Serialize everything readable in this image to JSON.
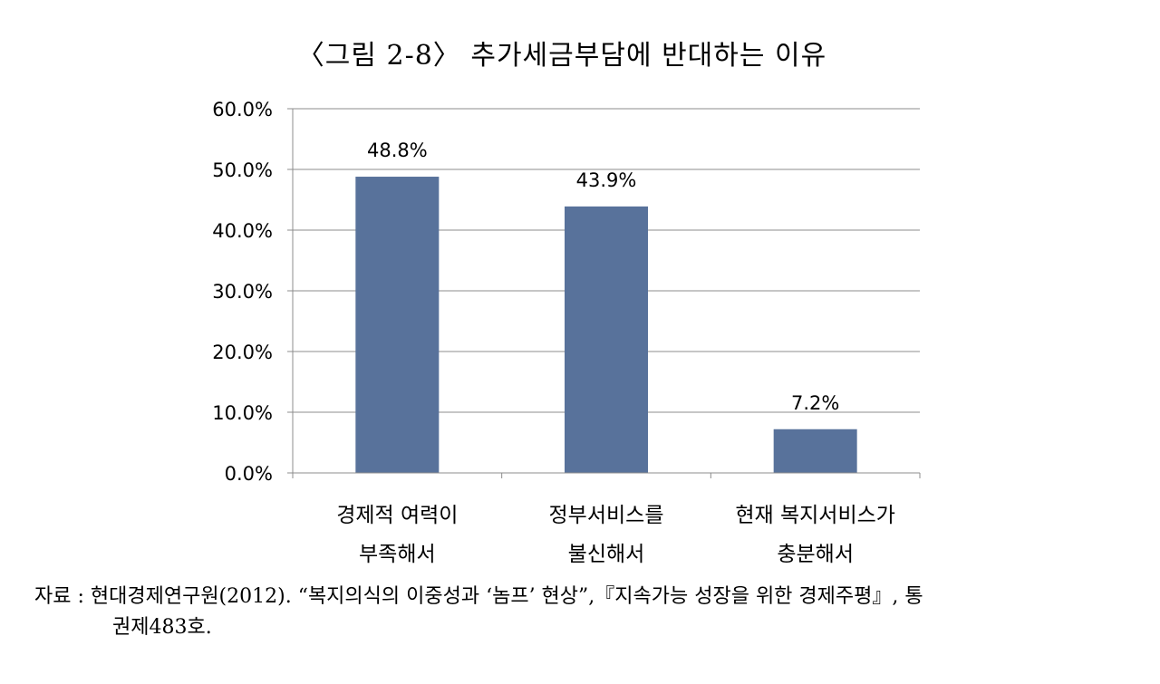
{
  "figure": {
    "title": "〈그림 2-8〉 추가세금부담에 반대하는 이유"
  },
  "chart_data": {
    "type": "bar",
    "categories": [
      [
        "경제적 여력이",
        "부족해서"
      ],
      [
        "정부서비스를",
        "불신해서"
      ],
      [
        "현재 복지서비스가",
        "충분해서"
      ]
    ],
    "values": [
      48.8,
      43.9,
      7.2
    ],
    "data_labels": [
      "48.8%",
      "43.9%",
      "7.2%"
    ],
    "ylim": [
      0,
      60
    ],
    "yticks": [
      0,
      10,
      20,
      30,
      40,
      50,
      60
    ],
    "ytick_labels": [
      "0.0%",
      "10.0%",
      "20.0%",
      "30.0%",
      "40.0%",
      "50.0%",
      "60.0%"
    ],
    "grid": true,
    "bar_color": "#58729b"
  },
  "source": {
    "line1": "자료 : 현대경제연구원(2012). “복지의식의 이중성과 ‘놈프’ 현상”,『지속가능 성장을 위한 경제주평』, 통",
    "line2": "권제483호."
  }
}
